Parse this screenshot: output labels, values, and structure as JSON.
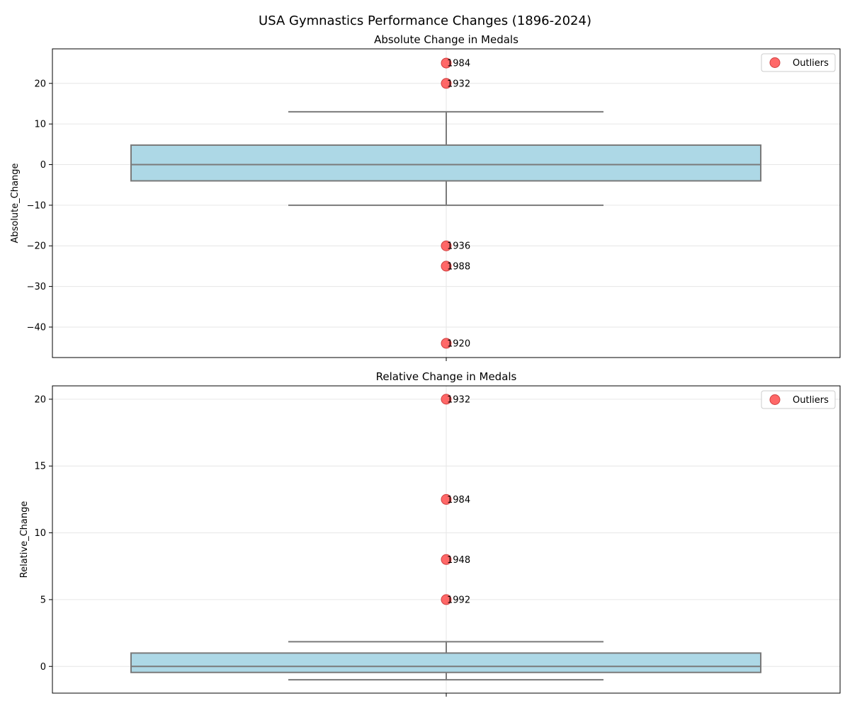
{
  "figure": {
    "title": "USA Gymnastics Performance Changes (1896-2024)"
  },
  "chart_data": [
    {
      "type": "box",
      "title": "Absolute Change in Medals",
      "xlabel": "",
      "ylabel": "Absolute_Change",
      "ylim": [
        -47.5,
        28.5
      ],
      "yticks": [
        -40,
        -30,
        -20,
        -10,
        0,
        10,
        20
      ],
      "ytick_labels": [
        "−40",
        "−30",
        "−20",
        "−10",
        "0",
        "10",
        "20"
      ],
      "grid": true,
      "legend": {
        "entries": [
          "Outliers"
        ],
        "placement": "top-right"
      },
      "box": {
        "q1": -4,
        "median": 0,
        "q3": 4.8,
        "whisker_low": -10,
        "whisker_high": 13,
        "color": "#add8e6"
      },
      "outliers": [
        {
          "label": "1984",
          "value": 25
        },
        {
          "label": "1932",
          "value": 20
        },
        {
          "label": "1936",
          "value": -20
        },
        {
          "label": "1988",
          "value": -25
        },
        {
          "label": "1920",
          "value": -44
        }
      ],
      "outlier_color": "#ff4d4d"
    },
    {
      "type": "box",
      "title": "Relative Change in Medals",
      "xlabel": "",
      "ylabel": "Relative_Change",
      "ylim": [
        -2.0,
        21.0
      ],
      "yticks": [
        0,
        5,
        10,
        15,
        20
      ],
      "ytick_labels": [
        "0",
        "5",
        "10",
        "15",
        "20"
      ],
      "grid": true,
      "legend": {
        "entries": [
          "Outliers"
        ],
        "placement": "top-right"
      },
      "box": {
        "q1": -0.45,
        "median": 0,
        "q3": 1.0,
        "whisker_low": -1.0,
        "whisker_high": 1.85,
        "color": "#add8e6"
      },
      "outliers": [
        {
          "label": "1932",
          "value": 20
        },
        {
          "label": "1984",
          "value": 12.5
        },
        {
          "label": "1948",
          "value": 8
        },
        {
          "label": "1992",
          "value": 5
        }
      ],
      "outlier_color": "#ff4d4d"
    }
  ]
}
